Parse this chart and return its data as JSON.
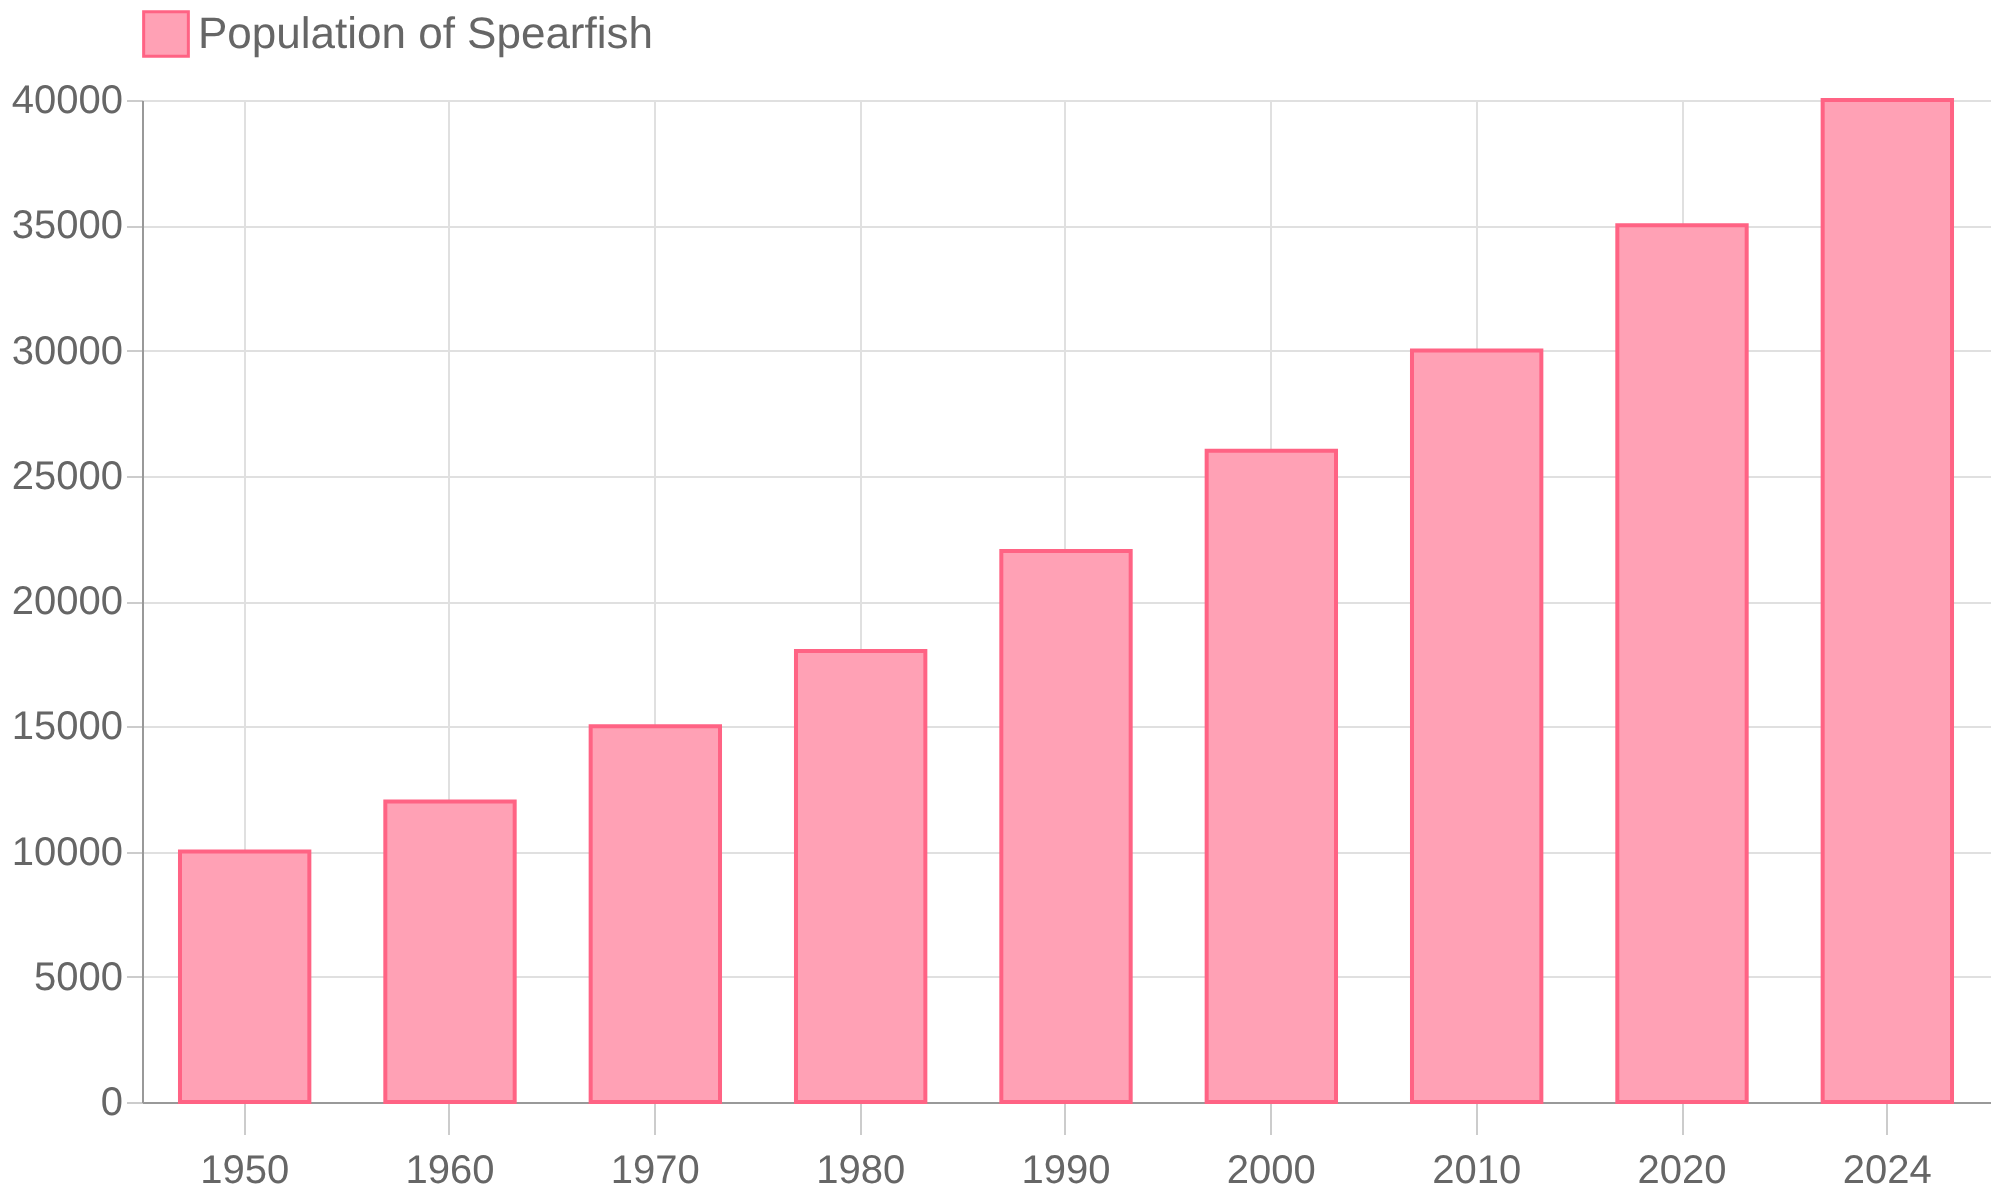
{
  "chart_data": {
    "type": "bar",
    "categories": [
      "1950",
      "1960",
      "1970",
      "1980",
      "1990",
      "2000",
      "2010",
      "2020",
      "2024"
    ],
    "series": [
      {
        "name": "Population of Spearfish",
        "color": "#ffa1b5",
        "values": [
          10000,
          12000,
          15000,
          18000,
          22000,
          26000,
          30000,
          35000,
          40000
        ]
      }
    ],
    "ylim": [
      0,
      40000
    ],
    "yticks": [
      0,
      5000,
      10000,
      15000,
      20000,
      25000,
      30000,
      35000,
      40000
    ],
    "grid": true,
    "legend": "top"
  }
}
